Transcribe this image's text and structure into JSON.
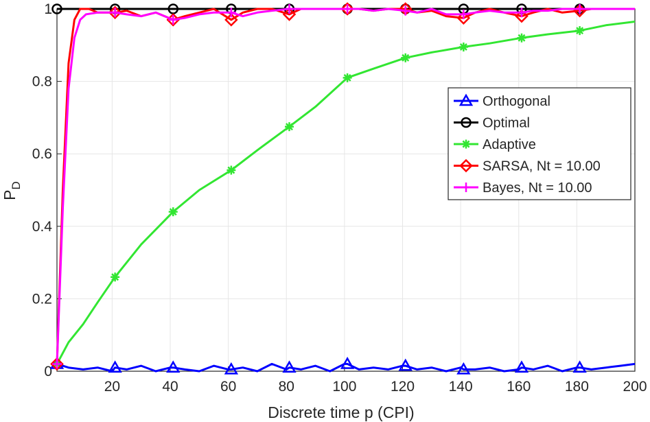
{
  "chart_data": {
    "type": "line",
    "title": "",
    "xlabel": "Discrete time p (CPI)",
    "ylabel": "P",
    "ylabel_sub": "D",
    "xlim": [
      1,
      200
    ],
    "ylim": [
      0,
      1
    ],
    "xticks": [
      20,
      40,
      60,
      80,
      100,
      120,
      140,
      160,
      180,
      200
    ],
    "yticks": [
      0,
      0.2,
      0.4,
      0.6,
      0.8,
      1
    ],
    "ytick_labels": [
      "0",
      "0.2",
      "0.4",
      "0.6",
      "0.8",
      "1"
    ],
    "grid": true,
    "legend_position": "right, upper-middle",
    "marker_x": [
      1,
      21,
      41,
      61,
      81,
      101,
      121,
      141,
      161,
      181
    ],
    "series": [
      {
        "name": "Orthogonal",
        "color": "#0000ff",
        "marker": "triangle",
        "x": [
          1,
          5,
          10,
          15,
          20,
          21,
          25,
          30,
          35,
          40,
          41,
          45,
          50,
          55,
          60,
          61,
          65,
          70,
          75,
          80,
          81,
          85,
          90,
          95,
          100,
          101,
          105,
          110,
          115,
          120,
          121,
          125,
          130,
          135,
          140,
          141,
          145,
          150,
          155,
          160,
          161,
          165,
          170,
          175,
          180,
          181,
          185,
          190,
          195,
          200
        ],
        "values": [
          0.02,
          0.01,
          0.005,
          0.01,
          0.0,
          0.01,
          0.005,
          0.015,
          0.0,
          0.01,
          0.01,
          0.005,
          0.0,
          0.015,
          0.005,
          0.005,
          0.01,
          0.0,
          0.02,
          0.005,
          0.01,
          0.005,
          0.015,
          0.0,
          0.02,
          0.02,
          0.005,
          0.01,
          0.005,
          0.015,
          0.015,
          0.005,
          0.01,
          0.0,
          0.01,
          0.005,
          0.005,
          0.01,
          0.0,
          0.005,
          0.01,
          0.005,
          0.015,
          0.0,
          0.01,
          0.01,
          0.005,
          0.01,
          0.015,
          0.02
        ]
      },
      {
        "name": "Optimal",
        "color": "#000000",
        "marker": "circle",
        "x": [
          1,
          200
        ],
        "values": [
          1,
          1
        ]
      },
      {
        "name": "Adaptive",
        "color": "#32e632",
        "marker": "star",
        "x": [
          1,
          5,
          10,
          15,
          21,
          30,
          41,
          50,
          61,
          70,
          81,
          90,
          101,
          110,
          121,
          130,
          141,
          150,
          161,
          170,
          181,
          190,
          200
        ],
        "values": [
          0.02,
          0.08,
          0.13,
          0.19,
          0.26,
          0.35,
          0.44,
          0.5,
          0.555,
          0.61,
          0.675,
          0.73,
          0.81,
          0.835,
          0.865,
          0.88,
          0.895,
          0.905,
          0.92,
          0.93,
          0.94,
          0.955,
          0.965
        ]
      },
      {
        "name": "SARSA, Nt = 10.00",
        "color": "#ff0000",
        "marker": "diamond",
        "x": [
          1,
          3,
          5,
          7,
          9,
          12,
          15,
          21,
          25,
          30,
          35,
          41,
          45,
          50,
          55,
          61,
          65,
          70,
          75,
          81,
          85,
          90,
          95,
          101,
          105,
          110,
          115,
          121,
          125,
          130,
          135,
          141,
          145,
          150,
          155,
          161,
          165,
          170,
          175,
          181,
          185,
          190,
          195,
          200
        ],
        "values": [
          0.02,
          0.5,
          0.85,
          0.97,
          1.0,
          1.0,
          0.99,
          0.99,
          0.995,
          0.98,
          0.99,
          0.97,
          0.98,
          0.99,
          1.0,
          0.97,
          0.99,
          1.0,
          1.0,
          0.985,
          1.0,
          1.0,
          1.0,
          1.0,
          1.0,
          0.995,
          1.0,
          1.0,
          0.99,
          0.995,
          0.98,
          0.975,
          0.99,
          1.0,
          0.99,
          0.98,
          0.99,
          1.0,
          0.99,
          0.995,
          1.0,
          1.0,
          1.0,
          1.0
        ]
      },
      {
        "name": "Bayes, Nt = 10.00",
        "color": "#ff00ff",
        "marker": "plus",
        "x": [
          1,
          3,
          5,
          7,
          9,
          11,
          15,
          21,
          25,
          30,
          35,
          41,
          45,
          50,
          55,
          61,
          65,
          70,
          75,
          81,
          85,
          90,
          95,
          101,
          105,
          110,
          115,
          121,
          125,
          130,
          135,
          141,
          145,
          150,
          155,
          161,
          165,
          170,
          175,
          181,
          185,
          190,
          195,
          200
        ],
        "values": [
          0.02,
          0.45,
          0.78,
          0.92,
          0.97,
          0.985,
          0.99,
          0.99,
          0.985,
          0.98,
          0.99,
          0.97,
          0.975,
          0.985,
          0.99,
          0.99,
          0.98,
          0.99,
          0.995,
          1.0,
          1.0,
          1.0,
          1.0,
          1.0,
          1.0,
          0.995,
          1.0,
          0.995,
          0.99,
          1.0,
          0.985,
          0.985,
          0.99,
          0.995,
          0.99,
          0.99,
          0.995,
          0.995,
          1.0,
          1.0,
          1.0,
          1.0,
          1.0,
          1.0
        ]
      }
    ]
  }
}
